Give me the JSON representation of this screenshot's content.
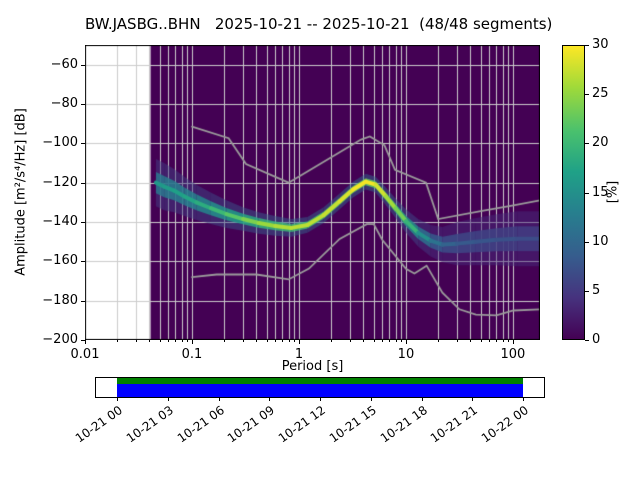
{
  "title": "BW.JASBG..BHN   2025-10-21 -- 2025-10-21  (48/48 segments)",
  "axes": {
    "ylabel": "Amplitude [m²/s⁴/Hz] [dB]",
    "xlabel": "Period [s]"
  },
  "chart_data": {
    "type": "heatmap",
    "title": "BW.JASBG..BHN   2025-10-21 -- 2025-10-21  (48/48 segments)",
    "station_id": "BW.JASBG..BHN",
    "date_range": "2025-10-21 -- 2025-10-21",
    "segments": "48/48",
    "xlabel": "Period [s]",
    "ylabel": "Amplitude [m²/s⁴/Hz] [dB]",
    "x_scale": "log",
    "xlim": [
      0.01,
      179
    ],
    "ylim": [
      -200,
      -50
    ],
    "x_ticks": [
      0.01,
      0.1,
      1,
      10,
      100
    ],
    "x_tick_labels": [
      "0.01",
      "0.1",
      "1",
      "10",
      "100"
    ],
    "y_ticks": [
      -60,
      -80,
      -100,
      -120,
      -140,
      -160,
      -180,
      -200
    ],
    "y_tick_labels": [
      "−60",
      "−80",
      "−100",
      "−120",
      "−140",
      "−160",
      "−180",
      "−200"
    ],
    "grid": true,
    "grid_color": "#cccccc",
    "background_color": "#440154",
    "data_period_range": [
      0.041,
      179
    ],
    "colorbar": {
      "label": "[%]",
      "min": 0,
      "max": 30,
      "ticks": [
        0,
        5,
        10,
        15,
        20,
        25,
        30
      ],
      "tick_labels": [
        "0",
        "5",
        "10",
        "15",
        "20",
        "25",
        "30"
      ],
      "colormap": "viridis"
    },
    "psd_mode": [
      [
        0.046,
        -120,
        16,
        12
      ],
      [
        0.055,
        -122,
        16,
        12
      ],
      [
        0.068,
        -124,
        17,
        11
      ],
      [
        0.085,
        -127,
        17,
        10
      ],
      [
        0.11,
        -130,
        18,
        9
      ],
      [
        0.15,
        -133,
        19,
        8
      ],
      [
        0.21,
        -136,
        21,
        7
      ],
      [
        0.3,
        -138.5,
        23,
        6
      ],
      [
        0.42,
        -140.5,
        25,
        5.5
      ],
      [
        0.6,
        -142,
        26,
        5
      ],
      [
        0.85,
        -143,
        27,
        4.5
      ],
      [
        1.2,
        -141.5,
        27,
        4
      ],
      [
        1.7,
        -136.5,
        27,
        4
      ],
      [
        2.4,
        -129.5,
        28,
        4
      ],
      [
        3.2,
        -123.5,
        29,
        4
      ],
      [
        4.2,
        -119.5,
        30,
        4
      ],
      [
        5.2,
        -121,
        29,
        4
      ],
      [
        6.5,
        -127,
        27,
        4.5
      ],
      [
        8.0,
        -133,
        25,
        5
      ],
      [
        10.0,
        -139.5,
        22,
        6
      ],
      [
        13.0,
        -145.5,
        17,
        7
      ],
      [
        17.0,
        -149.5,
        13,
        8
      ],
      [
        22.0,
        -151.5,
        10,
        9
      ],
      [
        30.0,
        -151,
        9,
        11
      ],
      [
        45.0,
        -150,
        8,
        12
      ],
      [
        70.0,
        -149,
        8,
        13
      ],
      [
        110.0,
        -148.5,
        7,
        14
      ],
      [
        178.0,
        -148.5,
        7,
        14
      ]
    ],
    "noise_models": {
      "color": "#9b9b9b",
      "nhnm": [
        [
          0.1,
          -91.5
        ],
        [
          0.22,
          -97.4
        ],
        [
          0.32,
          -110.5
        ],
        [
          0.8,
          -120.0
        ],
        [
          3.8,
          -98.1
        ],
        [
          4.6,
          -96.5
        ],
        [
          6.3,
          -101.0
        ],
        [
          7.9,
          -113.5
        ],
        [
          15.4,
          -120.0
        ],
        [
          20.0,
          -138.5
        ],
        [
          50.0,
          -134.5
        ],
        [
          101.0,
          -131.5
        ],
        [
          179.0,
          -129.0
        ]
      ],
      "nlnm": [
        [
          0.1,
          -168.0
        ],
        [
          0.17,
          -166.7
        ],
        [
          0.4,
          -166.7
        ],
        [
          0.8,
          -169.2
        ],
        [
          1.24,
          -163.7
        ],
        [
          2.4,
          -148.6
        ],
        [
          4.3,
          -141.1
        ],
        [
          5.0,
          -141.1
        ],
        [
          6.0,
          -149.0
        ],
        [
          10.0,
          -163.8
        ],
        [
          12.0,
          -166.2
        ],
        [
          15.6,
          -162.2
        ],
        [
          21.9,
          -175.9
        ],
        [
          31.6,
          -184.4
        ],
        [
          45.0,
          -187.1
        ],
        [
          70.0,
          -187.5
        ],
        [
          101.0,
          -185.0
        ],
        [
          179.0,
          -184.4
        ]
      ]
    }
  },
  "availability": {
    "tick_labels": [
      "10-21 00",
      "10-21 03",
      "10-21 06",
      "10-21 09",
      "10-21 12",
      "10-21 15",
      "10-21 18",
      "10-21 21",
      "10-22 00"
    ],
    "colors": {
      "top": "#008000",
      "bottom": "#0000ff"
    }
  }
}
